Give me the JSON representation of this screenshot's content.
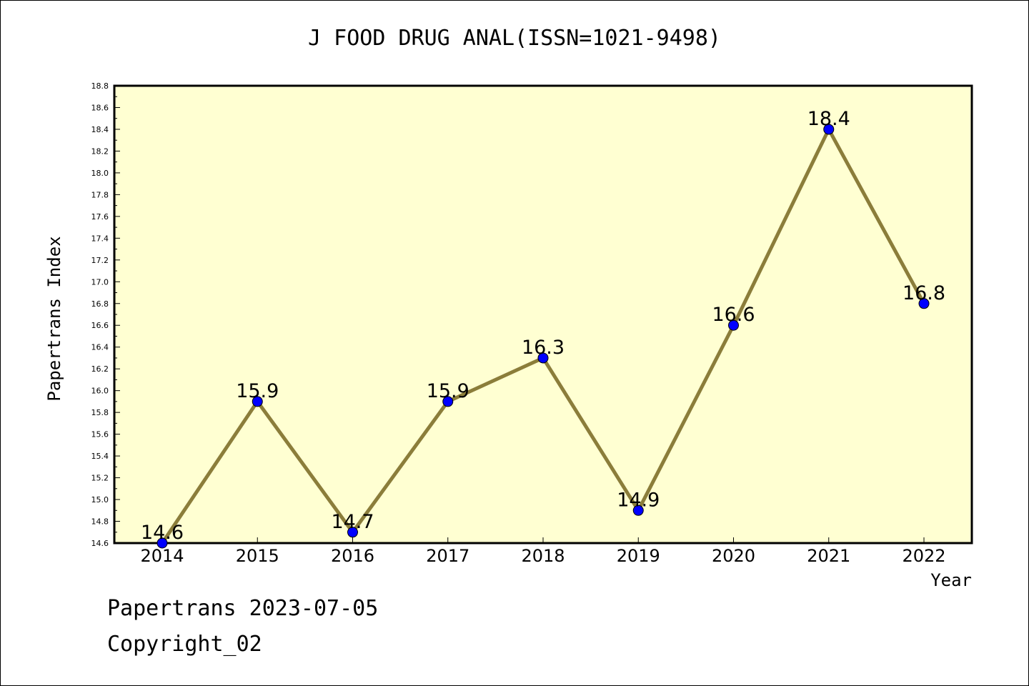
{
  "chart_data": {
    "type": "line",
    "title": "J FOOD DRUG ANAL(ISSN=1021-9498)",
    "xlabel": "Year",
    "ylabel": "Papertrans Index",
    "categories": [
      "2014",
      "2015",
      "2016",
      "2017",
      "2018",
      "2019",
      "2020",
      "2021",
      "2022"
    ],
    "values": [
      14.6,
      15.9,
      14.7,
      15.9,
      16.3,
      14.9,
      16.6,
      18.4,
      16.8
    ],
    "data_labels": [
      "14.6",
      "15.9",
      "14.7",
      "15.9",
      "16.3",
      "14.9",
      "16.6",
      "18.4",
      "16.8"
    ],
    "ylim": [
      14.6,
      18.8
    ],
    "yticks": [
      "14.6",
      "14.8",
      "15.0",
      "15.2",
      "15.4",
      "15.6",
      "15.8",
      "16.0",
      "16.2",
      "16.4",
      "16.6",
      "16.8",
      "17.0",
      "17.2",
      "17.4",
      "17.6",
      "17.8",
      "18.0",
      "18.2",
      "18.4",
      "18.6",
      "18.8"
    ],
    "grid": false,
    "colors": {
      "plot_background": "#ffffd2",
      "line": "#8b7d3a",
      "marker": "#0000ff"
    }
  },
  "footer": {
    "line1": "Papertrans 2023-07-05",
    "line2": "Copyright_02"
  }
}
